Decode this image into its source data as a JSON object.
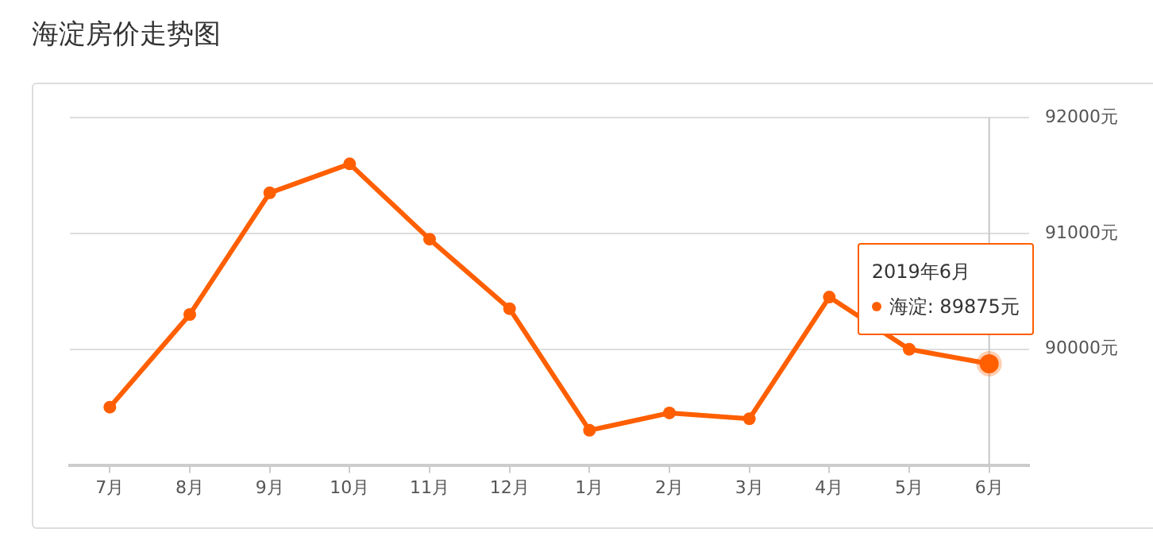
{
  "chart_data": {
    "type": "line",
    "title": "海淀房价走势图",
    "categories": [
      "7月",
      "8月",
      "9月",
      "10月",
      "11月",
      "12月",
      "1月",
      "2月",
      "3月",
      "4月",
      "5月",
      "6月"
    ],
    "series": [
      {
        "color": "#ff5f00",
        "values": [
          89500,
          90300,
          91350,
          91600,
          90950,
          90350,
          89300,
          89450,
          89400,
          90450,
          90000,
          89875
        ]
      }
    ],
    "ylim": [
      89000,
      92000
    ],
    "yticks": [
      {
        "value": 89000,
        "label": null
      },
      {
        "value": 90000,
        "label": "90000元"
      },
      {
        "value": 91000,
        "label": "91000元"
      },
      {
        "value": 92000,
        "label": "92000元"
      }
    ],
    "grid": "y",
    "legend": false,
    "marker": "circle",
    "line_style": "solid",
    "ref_lines": [
      {
        "axis": "x",
        "value": "6月",
        "color": "#c8c8c8"
      }
    ],
    "annotations": [
      "2019年6月",
      "海淀: 89875元"
    ]
  }
}
